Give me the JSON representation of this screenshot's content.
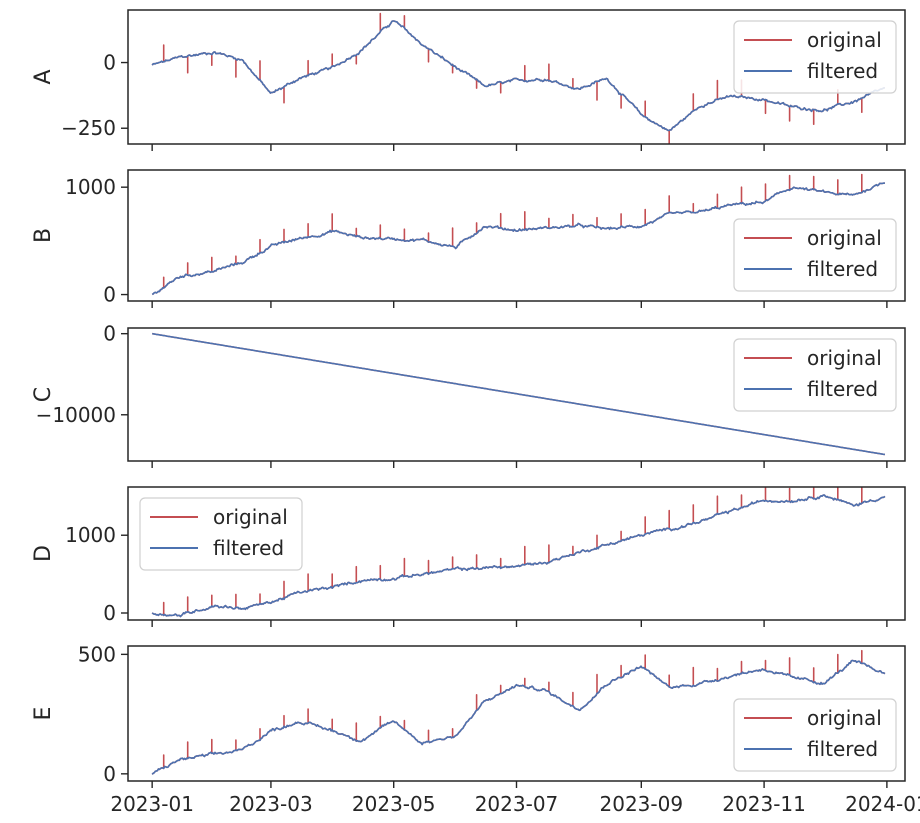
{
  "colors": {
    "original": "#c44e52",
    "filtered": "#4c72b0",
    "axis": "#262626"
  },
  "x_axis": {
    "ticks": [
      "2023-01",
      "2023-03",
      "2023-05",
      "2023-07",
      "2023-09",
      "2023-11",
      "2024-01"
    ],
    "tick_dates": [
      "2023-01-01",
      "2023-03-01",
      "2023-05-01",
      "2023-07-01",
      "2023-09-01",
      "2023-11-01",
      "2024-01-01"
    ],
    "xlim": [
      "2022-12-20",
      "2024-01-10"
    ],
    "shared": true
  },
  "chart_data": [
    {
      "type": "line",
      "ylabel": "A",
      "ylim": [
        -310,
        200
      ],
      "yticks": [
        {
          "value": 0,
          "label": "0"
        },
        {
          "value": -250,
          "label": "−250"
        }
      ],
      "legend": {
        "position": "top-right",
        "entries": [
          "original",
          "filtered"
        ]
      },
      "series": [
        {
          "name": "original",
          "color": "#c44e52"
        },
        {
          "name": "filtered",
          "color": "#4c72b0",
          "x": [
            "2023-01-01",
            "2023-01-15",
            "2023-02-01",
            "2023-02-15",
            "2023-03-01",
            "2023-03-15",
            "2023-04-01",
            "2023-04-15",
            "2023-05-01",
            "2023-05-15",
            "2023-06-01",
            "2023-06-15",
            "2023-07-01",
            "2023-07-15",
            "2023-08-01",
            "2023-08-15",
            "2023-09-01",
            "2023-09-15",
            "2023-10-01",
            "2023-10-15",
            "2023-11-01",
            "2023-11-15",
            "2023-12-01",
            "2023-12-15",
            "2023-12-31"
          ],
          "y": [
            -10,
            20,
            40,
            10,
            -120,
            -60,
            -20,
            50,
            160,
            70,
            -20,
            -90,
            -70,
            -60,
            -100,
            -60,
            -200,
            -260,
            -160,
            -130,
            -140,
            -170,
            -180,
            -150,
            -100
          ]
        }
      ]
    },
    {
      "type": "line",
      "ylabel": "B",
      "ylim": [
        -60,
        1160
      ],
      "yticks": [
        {
          "value": 1000,
          "label": "1000"
        },
        {
          "value": 0,
          "label": "0"
        }
      ],
      "legend": {
        "position": "bottom-right",
        "entries": [
          "original",
          "filtered"
        ]
      },
      "series": [
        {
          "name": "original",
          "color": "#c44e52"
        },
        {
          "name": "filtered",
          "color": "#4c72b0",
          "x": [
            "2023-01-01",
            "2023-01-15",
            "2023-02-01",
            "2023-02-15",
            "2023-03-01",
            "2023-03-15",
            "2023-04-01",
            "2023-04-15",
            "2023-05-01",
            "2023-05-15",
            "2023-06-01",
            "2023-06-15",
            "2023-07-01",
            "2023-07-15",
            "2023-08-01",
            "2023-08-15",
            "2023-09-01",
            "2023-09-15",
            "2023-10-01",
            "2023-10-15",
            "2023-11-01",
            "2023-11-15",
            "2023-12-01",
            "2023-12-15",
            "2023-12-31"
          ],
          "y": [
            0,
            170,
            220,
            300,
            450,
            520,
            590,
            530,
            520,
            510,
            440,
            640,
            600,
            620,
            640,
            610,
            640,
            740,
            770,
            830,
            860,
            1000,
            950,
            920,
            1050
          ]
        }
      ]
    },
    {
      "type": "line",
      "ylabel": "C",
      "ylim": [
        -15700,
        700
      ],
      "yticks": [
        {
          "value": 0,
          "label": "0"
        },
        {
          "value": -10000,
          "label": "−10000"
        }
      ],
      "legend": {
        "position": "top-right",
        "entries": [
          "original",
          "filtered"
        ]
      },
      "series": [
        {
          "name": "original",
          "color": "#c44e52"
        },
        {
          "name": "filtered",
          "color": "#4c72b0",
          "x": [
            "2023-01-01",
            "2023-12-31"
          ],
          "y": [
            0,
            -14900
          ]
        }
      ]
    },
    {
      "type": "line",
      "ylabel": "D",
      "ylim": [
        -90,
        1620
      ],
      "yticks": [
        {
          "value": 1000,
          "label": "1000"
        },
        {
          "value": 0,
          "label": "0"
        }
      ],
      "legend": {
        "position": "top-left",
        "entries": [
          "original",
          "filtered"
        ]
      },
      "series": [
        {
          "name": "original",
          "color": "#c44e52"
        },
        {
          "name": "filtered",
          "color": "#4c72b0",
          "x": [
            "2023-01-01",
            "2023-01-15",
            "2023-02-01",
            "2023-02-15",
            "2023-03-01",
            "2023-03-15",
            "2023-04-01",
            "2023-04-15",
            "2023-05-01",
            "2023-05-15",
            "2023-06-01",
            "2023-06-15",
            "2023-07-01",
            "2023-07-15",
            "2023-08-01",
            "2023-08-15",
            "2023-09-01",
            "2023-09-15",
            "2023-10-01",
            "2023-10-15",
            "2023-11-01",
            "2023-11-15",
            "2023-12-01",
            "2023-12-15",
            "2023-12-31"
          ],
          "y": [
            0,
            -30,
            100,
            60,
            140,
            260,
            330,
            420,
            450,
            500,
            560,
            580,
            600,
            650,
            780,
            880,
            1000,
            1080,
            1180,
            1300,
            1450,
            1450,
            1520,
            1380,
            1500
          ]
        }
      ]
    },
    {
      "type": "line",
      "ylabel": "E",
      "ylim": [
        -30,
        535
      ],
      "yticks": [
        {
          "value": 500,
          "label": "500"
        },
        {
          "value": 0,
          "label": "0"
        }
      ],
      "legend": {
        "position": "bottom-right",
        "entries": [
          "original",
          "filtered"
        ]
      },
      "series": [
        {
          "name": "original",
          "color": "#c44e52"
        },
        {
          "name": "filtered",
          "color": "#4c72b0",
          "x": [
            "2023-01-01",
            "2023-01-15",
            "2023-02-01",
            "2023-02-15",
            "2023-03-01",
            "2023-03-15",
            "2023-04-01",
            "2023-04-15",
            "2023-05-01",
            "2023-05-15",
            "2023-06-01",
            "2023-06-15",
            "2023-07-01",
            "2023-07-15",
            "2023-08-01",
            "2023-08-15",
            "2023-09-01",
            "2023-09-15",
            "2023-10-01",
            "2023-10-15",
            "2023-11-01",
            "2023-11-15",
            "2023-12-01",
            "2023-12-15",
            "2023-12-31"
          ],
          "y": [
            0,
            60,
            80,
            100,
            180,
            220,
            180,
            140,
            220,
            130,
            160,
            300,
            370,
            350,
            270,
            380,
            450,
            360,
            380,
            410,
            440,
            400,
            380,
            470,
            420
          ]
        }
      ]
    }
  ]
}
